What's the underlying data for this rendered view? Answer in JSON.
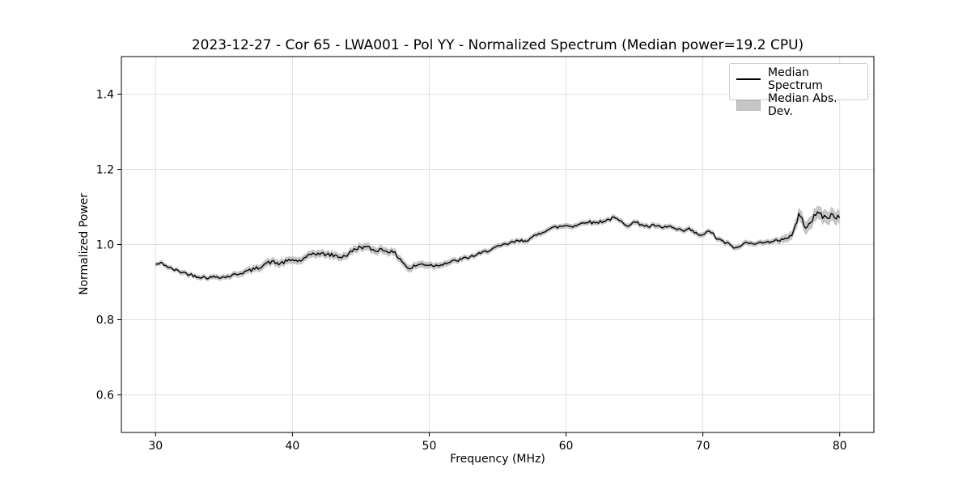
{
  "chart_data": {
    "type": "line",
    "title": "2023-12-27 - Cor 65 - LWA001 - Pol YY - Normalized Spectrum (Median power=19.2 CPU)",
    "xlabel": "Frequency (MHz)",
    "ylabel": "Normalized Power",
    "xlim": [
      27.5,
      82.5
    ],
    "ylim": [
      0.5,
      1.5
    ],
    "xticks": [
      30,
      40,
      50,
      60,
      70,
      80
    ],
    "yticks": [
      0.6,
      0.8,
      1.0,
      1.2,
      1.4
    ],
    "grid": true,
    "legend_position": "upper right",
    "line_color": "#000000",
    "band_color": "#c6c6c6",
    "series": [
      {
        "name": "Median Spectrum",
        "color": "#000000",
        "x": [
          30,
          30.5,
          31,
          31.5,
          32,
          32.5,
          33,
          33.5,
          34,
          34.5,
          35,
          35.5,
          36,
          36.5,
          37,
          37.5,
          38,
          38.5,
          39,
          39.5,
          40,
          40.5,
          41,
          41.5,
          42,
          42.5,
          43,
          43.5,
          44,
          44.5,
          45,
          45.5,
          46,
          46.5,
          47,
          47.5,
          48,
          48.5,
          49,
          49.5,
          50,
          50.5,
          51,
          51.5,
          52,
          52.5,
          53,
          53.5,
          54,
          54.5,
          55,
          55.5,
          56,
          56.5,
          57,
          57.5,
          58,
          58.5,
          59,
          59.5,
          60,
          60.5,
          61,
          61.5,
          62,
          62.5,
          63,
          63.5,
          64,
          64.5,
          65,
          65.5,
          66,
          66.5,
          67,
          67.5,
          68,
          68.5,
          69,
          69.5,
          70,
          70.5,
          71,
          71.5,
          72,
          72.5,
          73,
          73.5,
          74,
          74.5,
          75,
          75.5,
          76,
          76.5,
          77,
          77.5,
          78,
          78.5,
          79,
          79.5,
          80
        ],
        "y": [
          0.947,
          0.95,
          0.938,
          0.931,
          0.926,
          0.92,
          0.916,
          0.913,
          0.912,
          0.915,
          0.913,
          0.917,
          0.922,
          0.927,
          0.932,
          0.938,
          0.949,
          0.954,
          0.949,
          0.954,
          0.959,
          0.956,
          0.964,
          0.977,
          0.975,
          0.974,
          0.971,
          0.967,
          0.972,
          0.986,
          0.994,
          0.992,
          0.984,
          0.987,
          0.983,
          0.976,
          0.957,
          0.934,
          0.944,
          0.948,
          0.946,
          0.944,
          0.949,
          0.953,
          0.957,
          0.962,
          0.967,
          0.973,
          0.979,
          0.988,
          0.993,
          0.999,
          1.005,
          1.009,
          1.011,
          1.017,
          1.028,
          1.038,
          1.044,
          1.047,
          1.051,
          1.049,
          1.054,
          1.062,
          1.057,
          1.061,
          1.065,
          1.071,
          1.061,
          1.052,
          1.059,
          1.054,
          1.047,
          1.051,
          1.043,
          1.049,
          1.041,
          1.035,
          1.041,
          1.029,
          1.023,
          1.038,
          1.016,
          1.007,
          0.999,
          0.989,
          1.003,
          1.007,
          1.001,
          1.009,
          1.005,
          1.011,
          1.017,
          1.023,
          1.078,
          1.051,
          1.066,
          1.086,
          1.069,
          1.08,
          1.071
        ]
      },
      {
        "name": "Median Abs. Dev.",
        "type": "band",
        "color": "#c6c6c6",
        "around_series": "Median Spectrum",
        "x": [
          30,
          35,
          38,
          48,
          50,
          53,
          75,
          76.5,
          77,
          80
        ],
        "half_width": [
          0.006,
          0.007,
          0.01,
          0.01,
          0.009,
          0.007,
          0.007,
          0.012,
          0.017,
          0.018
        ]
      }
    ]
  }
}
